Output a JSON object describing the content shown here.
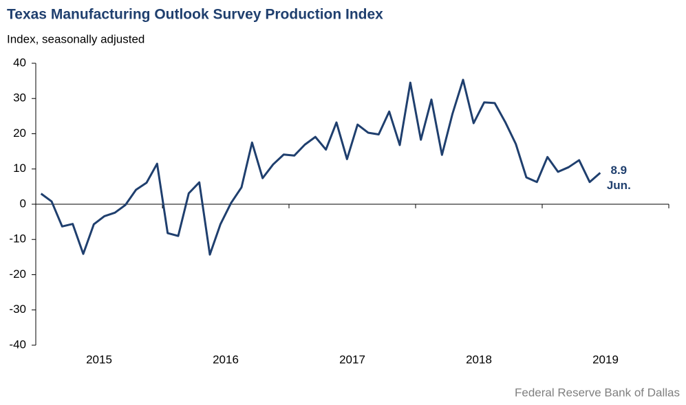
{
  "chart_data": {
    "type": "line",
    "title": "Texas Manufacturing Outlook Survey Production Index",
    "subtitle": "Index, seasonally adjusted",
    "source": "Federal Reserve Bank of Dallas",
    "annotation": "Jun.",
    "color": "#1f3f6e",
    "categories": [
      null,
      null,
      null,
      null,
      null,
      "2015",
      null,
      null,
      null,
      null,
      null,
      null,
      null,
      null,
      null,
      null,
      null,
      "2016",
      null,
      null,
      null,
      null,
      null,
      null,
      null,
      null,
      null,
      null,
      null,
      "2017",
      null,
      null,
      null,
      null,
      null,
      null,
      null,
      null,
      null,
      null,
      null,
      "2018",
      null,
      null,
      null,
      null,
      null,
      null,
      null,
      null,
      null,
      null,
      null,
      "2019"
    ],
    "values": [
      3,
      0.8,
      -6.3,
      -5.6,
      -14.1,
      -5.7,
      -3.4,
      -2.4,
      -0.2,
      4.1,
      6.1,
      11.5,
      -8.2,
      -9,
      3.1,
      6.2,
      -14.3,
      -5.7,
      0.3,
      4.8,
      17.5,
      7.4,
      11.3,
      14.1,
      13.8,
      16.9,
      19.1,
      15.5,
      23.2,
      12.8,
      22.6,
      20.3,
      19.8,
      26.3,
      16.8,
      34.5,
      18.3,
      29.7,
      14,
      25.7,
      35.3,
      23,
      28.9,
      28.7,
      23.3,
      17.1,
      7.6,
      6.3,
      13.4,
      9.2,
      10.5,
      12.5,
      6.3,
      8.9
    ],
    "ylim": [
      -40,
      40
    ],
    "yticks": [
      -40,
      -30,
      -20,
      -10,
      0,
      10,
      20,
      30,
      40
    ]
  }
}
